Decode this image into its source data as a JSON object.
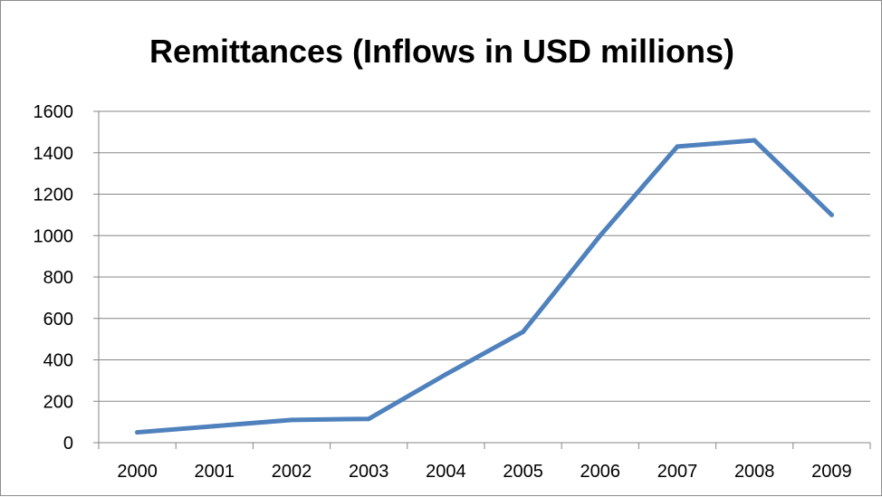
{
  "chart_data": {
    "type": "line",
    "title": "Remittances (Inflows in USD millions)",
    "xlabel": "",
    "ylabel": "",
    "categories": [
      "2000",
      "2001",
      "2002",
      "2003",
      "2004",
      "2005",
      "2006",
      "2007",
      "2008",
      "2009"
    ],
    "series": [
      {
        "values": [
          50,
          80,
          110,
          115,
          330,
          535,
          1000,
          1430,
          1460,
          1100
        ]
      }
    ],
    "ylim": [
      0,
      1600
    ],
    "yticks": [
      0,
      200,
      400,
      600,
      800,
      1000,
      1200,
      1400,
      1600
    ],
    "grid": "horizontal",
    "legend": "none",
    "colors": {
      "line": "#4f81bd",
      "grid": "#868686",
      "axis": "#868686"
    }
  }
}
